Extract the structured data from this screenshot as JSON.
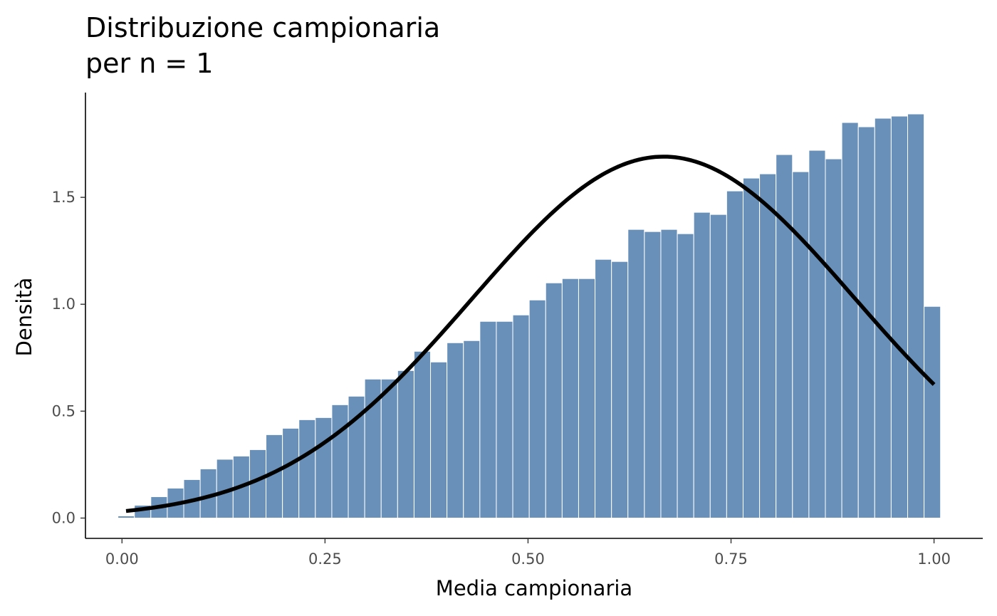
{
  "chart_data": {
    "type": "bar",
    "title_lines": [
      "Distribuzione campionaria",
      "per n = 1"
    ],
    "xlabel": "Media campionaria",
    "ylabel": "Densità",
    "xlim": [
      -0.045,
      1.06
    ],
    "ylim": [
      -0.095,
      1.99
    ],
    "x_ticks": [
      {
        "value": 0.0,
        "label": "0.00"
      },
      {
        "value": 0.25,
        "label": "0.25"
      },
      {
        "value": 0.5,
        "label": "0.50"
      },
      {
        "value": 0.75,
        "label": "0.75"
      },
      {
        "value": 1.0,
        "label": "1.00"
      }
    ],
    "y_ticks": [
      {
        "value": 0.0,
        "label": "0.0"
      },
      {
        "value": 0.5,
        "label": "0.5"
      },
      {
        "value": 1.0,
        "label": "1.0"
      },
      {
        "value": 1.5,
        "label": "1.5"
      }
    ],
    "grid": false,
    "legend": "none",
    "histogram": {
      "bin_start": -0.005,
      "bin_width": 0.02026,
      "density": [
        0.01,
        0.06,
        0.1,
        0.14,
        0.18,
        0.23,
        0.275,
        0.29,
        0.32,
        0.39,
        0.42,
        0.46,
        0.47,
        0.53,
        0.57,
        0.65,
        0.65,
        0.69,
        0.78,
        0.73,
        0.82,
        0.83,
        0.92,
        0.92,
        0.95,
        1.02,
        1.1,
        1.12,
        1.12,
        1.21,
        1.2,
        1.35,
        1.34,
        1.35,
        1.33,
        1.43,
        1.42,
        1.53,
        1.59,
        1.61,
        1.7,
        1.62,
        1.72,
        1.68,
        1.85,
        1.83,
        1.87,
        1.88,
        1.89,
        0.99
      ],
      "fill_color": "#6890b9",
      "edge_color": "#ffffff"
    },
    "curve": {
      "type": "normal-density",
      "mean": 0.667,
      "sd": 0.236,
      "x_range": [
        0.005,
        1.0
      ],
      "color": "#000000"
    }
  }
}
